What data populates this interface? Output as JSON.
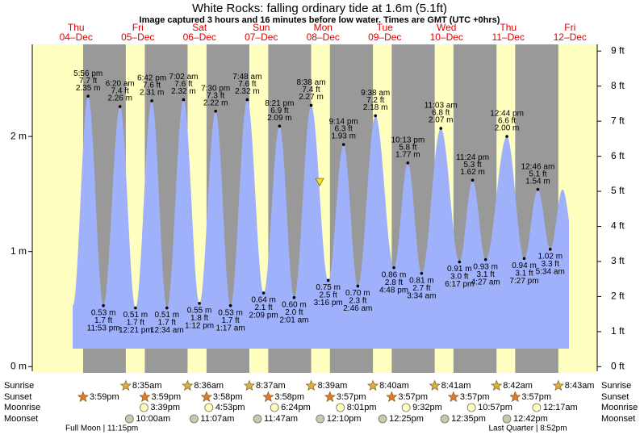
{
  "chart_data": {
    "type": "tide",
    "title": "White Rocks: falling  ordinary tide at 1.6m (5.1ft)",
    "subtitle": "Image captured 3 hours and 16 minutes before low water. Times are GMT (UTC +0hrs)",
    "ylim": [
      -0.04,
      2.8
    ],
    "yticks": [
      {
        "value": 0,
        "label": "0 m"
      },
      {
        "value": 1,
        "label": "1 m"
      },
      {
        "value": 2,
        "label": "2 m"
      }
    ],
    "y2lim": [
      -0.13,
      9.19
    ],
    "y2ticks": [
      {
        "value": 0,
        "label": "0 ft"
      },
      {
        "value": 1,
        "label": "1 ft"
      },
      {
        "value": 2,
        "label": "2 ft"
      },
      {
        "value": 3,
        "label": "3 ft"
      },
      {
        "value": 4,
        "label": "4 ft"
      },
      {
        "value": 5,
        "label": "5 ft"
      },
      {
        "value": 6,
        "label": "6 ft"
      },
      {
        "value": 7,
        "label": "7 ft"
      },
      {
        "value": 8,
        "label": "8 ft"
      },
      {
        "value": 9,
        "label": "9 ft"
      }
    ],
    "now_level": 1.6,
    "row_labels": [
      "Sunrise",
      "Sunset",
      "Moonrise",
      "Moonset"
    ],
    "colors": {
      "day": "#ffffc0",
      "night": "#999999",
      "water": "#9fb1fb",
      "days": "#dd0000"
    },
    "days": [
      {
        "weekday": "Thu",
        "date": "04–Dec",
        "sunset": "3:59pm",
        "moon_phase": "Full Moon | 11:15pm",
        "tides": [
          {
            "time": "5:56 pm",
            "ft": 7.7,
            "ft_label": "7.7 ft",
            "m": 2.35,
            "m_label": "2.35 m"
          },
          {
            "time": "11:53 pm",
            "ft": 1.7,
            "ft_label": "1.7 ft",
            "m": 0.53,
            "m_label": "0.53 m"
          }
        ]
      },
      {
        "weekday": "Fri",
        "date": "05–Dec",
        "sunrise": "8:35am",
        "sunset": "3:59pm",
        "moonrise": "3:39pm",
        "moonset": "10:00am",
        "tides": [
          {
            "time": "6:20 am",
            "ft": 7.4,
            "ft_label": "7.4 ft",
            "m": 2.26,
            "m_label": "2.26 m"
          },
          {
            "time": "12:21 pm",
            "ft": 1.7,
            "ft_label": "1.7 ft",
            "m": 0.51,
            "m_label": "0.51 m"
          },
          {
            "time": "6:42 pm",
            "ft": 7.6,
            "ft_label": "7.6 ft",
            "m": 2.31,
            "m_label": "2.31 m"
          }
        ]
      },
      {
        "weekday": "Sat",
        "date": "06–Dec",
        "sunrise": "8:36am",
        "sunset": "3:58pm",
        "moonrise": "4:53pm",
        "moonset": "11:07am",
        "tides": [
          {
            "time": "12:34 am",
            "ft": 1.7,
            "ft_label": "1.7 ft",
            "m": 0.51,
            "m_label": "0.51 m"
          },
          {
            "time": "7:02 am",
            "ft": 7.6,
            "ft_label": "7.6 ft",
            "m": 2.32,
            "m_label": "2.32 m"
          },
          {
            "time": "1:12 pm",
            "ft": 1.8,
            "ft_label": "1.8 ft",
            "m": 0.55,
            "m_label": "0.55 m"
          },
          {
            "time": "7:30 pm",
            "ft": 7.3,
            "ft_label": "7.3 ft",
            "m": 2.22,
            "m_label": "2.22 m"
          }
        ]
      },
      {
        "weekday": "Sun",
        "date": "07–Dec",
        "sunrise": "8:37am",
        "sunset": "3:58pm",
        "moonrise": "6:24pm",
        "moonset": "11:47am",
        "tides": [
          {
            "time": "1:17 am",
            "ft": 1.7,
            "ft_label": "1.7 ft",
            "m": 0.53,
            "m_label": "0.53 m"
          },
          {
            "time": "7:48 am",
            "ft": 7.6,
            "ft_label": "7.6 ft",
            "m": 2.32,
            "m_label": "2.32 m"
          },
          {
            "time": "2:09 pm",
            "ft": 2.1,
            "ft_label": "2.1 ft",
            "m": 0.64,
            "m_label": "0.64 m"
          },
          {
            "time": "8:21 pm",
            "ft": 6.9,
            "ft_label": "6.9 ft",
            "m": 2.09,
            "m_label": "2.09 m"
          }
        ]
      },
      {
        "weekday": "Mon",
        "date": "08–Dec",
        "sunrise": "8:39am",
        "sunset": "3:57pm",
        "moonrise": "8:01pm",
        "moonset": "12:10pm",
        "tides": [
          {
            "time": "2:01 am",
            "ft": 2.0,
            "ft_label": "2.0 ft",
            "m": 0.6,
            "m_label": "0.60 m"
          },
          {
            "time": "8:38 am",
            "ft": 7.4,
            "ft_label": "7.4 ft",
            "m": 2.27,
            "m_label": "2.27 m"
          },
          {
            "time": "3:16 pm",
            "ft": 2.5,
            "ft_label": "2.5 ft",
            "m": 0.75,
            "m_label": "0.75 m"
          },
          {
            "time": "9:14 pm",
            "ft": 6.3,
            "ft_label": "6.3 ft",
            "m": 1.93,
            "m_label": "1.93 m"
          }
        ]
      },
      {
        "weekday": "Tue",
        "date": "09–Dec",
        "sunrise": "8:40am",
        "sunset": "3:57pm",
        "moonrise": "9:32pm",
        "moonset": "12:25pm",
        "tides": [
          {
            "time": "2:46 am",
            "ft": 2.3,
            "ft_label": "2.3 ft",
            "m": 0.7,
            "m_label": "0.70 m"
          },
          {
            "time": "9:38 am",
            "ft": 7.2,
            "ft_label": "7.2 ft",
            "m": 2.18,
            "m_label": "2.18 m"
          },
          {
            "time": "4:48 pm",
            "ft": 2.8,
            "ft_label": "2.8 ft",
            "m": 0.86,
            "m_label": "0.86 m"
          },
          {
            "time": "10:13 pm",
            "ft": 5.8,
            "ft_label": "5.8 ft",
            "m": 1.77,
            "m_label": "1.77 m"
          }
        ]
      },
      {
        "weekday": "Wed",
        "date": "10–Dec",
        "sunrise": "8:41am",
        "sunset": "3:57pm",
        "moonrise": "10:57pm",
        "moonset": "12:35pm",
        "tides": [
          {
            "time": "3:34 am",
            "ft": 2.7,
            "ft_label": "2.7 ft",
            "m": 0.81,
            "m_label": "0.81 m"
          },
          {
            "time": "11:03 am",
            "ft": 6.8,
            "ft_label": "6.8 ft",
            "m": 2.07,
            "m_label": "2.07 m"
          },
          {
            "time": "6:17 pm",
            "ft": 3.0,
            "ft_label": "3.0 ft",
            "m": 0.91,
            "m_label": "0.91 m"
          },
          {
            "time": "11:24 pm",
            "ft": 5.3,
            "ft_label": "5.3 ft",
            "m": 1.62,
            "m_label": "1.62 m"
          }
        ]
      },
      {
        "weekday": "Thu",
        "date": "11–Dec",
        "sunrise": "8:42am",
        "sunset": "3:57pm",
        "moonset": "12:42pm",
        "moon_phase": "Last Quarter | 8:52pm",
        "tides": [
          {
            "time": "4:27 am",
            "ft": 3.1,
            "ft_label": "3.1 ft",
            "m": 0.93,
            "m_label": "0.93 m"
          },
          {
            "time": "12:44 pm",
            "ft": 6.6,
            "ft_label": "6.6 ft",
            "m": 2.0,
            "m_label": "2.00 m"
          },
          {
            "time": "7:27 pm",
            "ft": 3.1,
            "ft_label": "3.1 ft",
            "m": 0.94,
            "m_label": "0.94 m"
          }
        ]
      },
      {
        "weekday": "Fri",
        "date": "12–Dec",
        "sunrise": "8:43am",
        "moonrise": "12:17am",
        "tides": [
          {
            "time": "12:46 am",
            "ft": 5.1,
            "ft_label": "5.1 ft",
            "m": 1.54,
            "m_label": "1.54 m"
          },
          {
            "time": "5:34 am",
            "ft": 3.3,
            "ft_label": "3.3 ft",
            "m": 1.02,
            "m_label": "1.02 m"
          }
        ]
      }
    ]
  }
}
